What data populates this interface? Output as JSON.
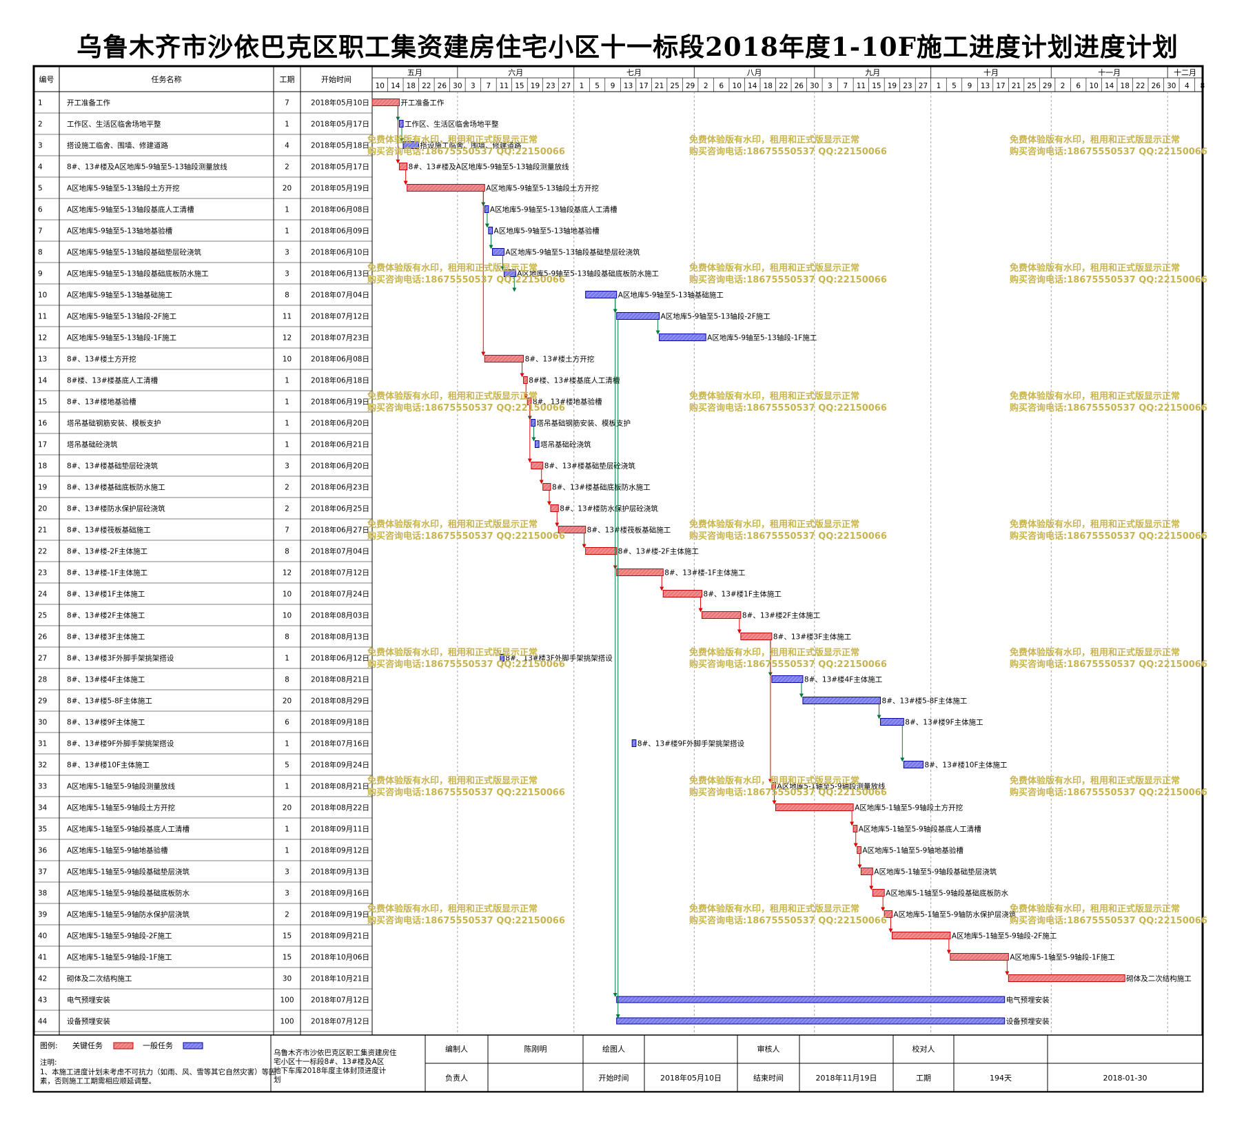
{
  "title": "乌鲁木齐市沙依巴克区职工集资建房住宅小区十一标段2018年度1-10F施工进度计划进度计划",
  "columns": {
    "id": "编号",
    "name": "任务名称",
    "duration": "工期",
    "start": "开始时间"
  },
  "watermark": {
    "line1": "免费体验版有水印，租用和正式版显示正常",
    "line2": "购买咨询电话:18675550537 QQ:22150066"
  },
  "colors": {
    "critical": "#e8787a",
    "critical_stroke": "#c00000",
    "normal": "#7878e8",
    "normal_stroke": "#0000a0",
    "link_critical": "#e00000",
    "link_normal": "#007a40",
    "watermark": "#c8b450",
    "month_line": "#8c8c8c"
  },
  "chart_data": {
    "type": "gantt",
    "timeline_start": "2018-05-10",
    "months": [
      {
        "label": "五月",
        "start": "2018-05-10"
      },
      {
        "label": "六月",
        "start": "2018-06-01"
      },
      {
        "label": "七月",
        "start": "2018-07-01"
      },
      {
        "label": "八月",
        "start": "2018-08-01"
      },
      {
        "label": "九月",
        "start": "2018-09-01"
      },
      {
        "label": "十月",
        "start": "2018-10-01"
      },
      {
        "label": "十一月",
        "start": "2018-11-01"
      },
      {
        "label": "十二月",
        "start": "2018-12-01"
      }
    ],
    "month_end": "2018-12-10",
    "ticks": [
      {
        "label": "10",
        "date": "2018-05-10"
      },
      {
        "label": "14",
        "date": "2018-05-14"
      },
      {
        "label": "18",
        "date": "2018-05-18"
      },
      {
        "label": "22",
        "date": "2018-05-22"
      },
      {
        "label": "26",
        "date": "2018-05-26"
      },
      {
        "label": "30",
        "date": "2018-05-30"
      },
      {
        "label": "3",
        "date": "2018-06-03"
      },
      {
        "label": "7",
        "date": "2018-06-07"
      },
      {
        "label": "11",
        "date": "2018-06-11"
      },
      {
        "label": "15",
        "date": "2018-06-15"
      },
      {
        "label": "19",
        "date": "2018-06-19"
      },
      {
        "label": "23",
        "date": "2018-06-23"
      },
      {
        "label": "27",
        "date": "2018-06-27"
      },
      {
        "label": "1",
        "date": "2018-07-01"
      },
      {
        "label": "5",
        "date": "2018-07-05"
      },
      {
        "label": "9",
        "date": "2018-07-09"
      },
      {
        "label": "13",
        "date": "2018-07-13"
      },
      {
        "label": "17",
        "date": "2018-07-17"
      },
      {
        "label": "21",
        "date": "2018-07-21"
      },
      {
        "label": "25",
        "date": "2018-07-25"
      },
      {
        "label": "29",
        "date": "2018-07-29"
      },
      {
        "label": "2",
        "date": "2018-08-02"
      },
      {
        "label": "6",
        "date": "2018-08-06"
      },
      {
        "label": "10",
        "date": "2018-08-10"
      },
      {
        "label": "14",
        "date": "2018-08-14"
      },
      {
        "label": "18",
        "date": "2018-08-18"
      },
      {
        "label": "22",
        "date": "2018-08-22"
      },
      {
        "label": "26",
        "date": "2018-08-26"
      },
      {
        "label": "30",
        "date": "2018-08-30"
      },
      {
        "label": "3",
        "date": "2018-09-03"
      },
      {
        "label": "7",
        "date": "2018-09-07"
      },
      {
        "label": "11",
        "date": "2018-09-11"
      },
      {
        "label": "15",
        "date": "2018-09-15"
      },
      {
        "label": "19",
        "date": "2018-09-19"
      },
      {
        "label": "23",
        "date": "2018-09-23"
      },
      {
        "label": "27",
        "date": "2018-09-27"
      },
      {
        "label": "1",
        "date": "2018-10-01"
      },
      {
        "label": "5",
        "date": "2018-10-05"
      },
      {
        "label": "9",
        "date": "2018-10-09"
      },
      {
        "label": "13",
        "date": "2018-10-13"
      },
      {
        "label": "17",
        "date": "2018-10-17"
      },
      {
        "label": "21",
        "date": "2018-10-21"
      },
      {
        "label": "25",
        "date": "2018-10-25"
      },
      {
        "label": "29",
        "date": "2018-10-29"
      },
      {
        "label": "2",
        "date": "2018-11-02"
      },
      {
        "label": "6",
        "date": "2018-11-06"
      },
      {
        "label": "10",
        "date": "2018-11-10"
      },
      {
        "label": "14",
        "date": "2018-11-14"
      },
      {
        "label": "18",
        "date": "2018-11-18"
      },
      {
        "label": "22",
        "date": "2018-11-22"
      },
      {
        "label": "26",
        "date": "2018-11-26"
      },
      {
        "label": "30",
        "date": "2018-11-30"
      },
      {
        "label": "4",
        "date": "2018-12-04"
      },
      {
        "label": "8",
        "date": "2018-12-08"
      }
    ],
    "tasks": [
      {
        "id": "1",
        "name": "开工准备工作",
        "duration": 7,
        "start": "2018年05月10日",
        "critical": true
      },
      {
        "id": "2",
        "name": "工作区、生活区临舍场地平整",
        "duration": 1,
        "start": "2018年05月17日",
        "critical": false
      },
      {
        "id": "3",
        "name": "搭设施工临舍、围墙、修建道路",
        "duration": 4,
        "start": "2018年05月18日",
        "critical": false
      },
      {
        "id": "4",
        "name": "8#、13#楼及A区地库5-9轴至5-13轴段测量放线",
        "duration": 2,
        "start": "2018年05月17日",
        "critical": true
      },
      {
        "id": "5",
        "name": "A区地库5-9轴至5-13轴段土方开挖",
        "duration": 20,
        "start": "2018年05月19日",
        "critical": true
      },
      {
        "id": "6",
        "name": "A区地库5-9轴至5-13轴段基底人工清槽",
        "duration": 1,
        "start": "2018年06月08日",
        "critical": false
      },
      {
        "id": "7",
        "name": "A区地库5-9轴至5-13轴地基验槽",
        "duration": 1,
        "start": "2018年06月09日",
        "critical": false
      },
      {
        "id": "8",
        "name": "A区地库5-9轴至5-13轴段基础垫层砼浇筑",
        "duration": 3,
        "start": "2018年06月10日",
        "critical": false
      },
      {
        "id": "9",
        "name": "A区地库5-9轴至5-13轴段基础底板防水施工",
        "duration": 3,
        "start": "2018年06月13日",
        "critical": false
      },
      {
        "id": "10",
        "name": "A区地库5-9轴至5-13轴基础施工",
        "duration": 8,
        "start": "2018年07月04日",
        "critical": false
      },
      {
        "id": "11",
        "name": "A区地库5-9轴至5-13轴段-2F施工",
        "duration": 11,
        "start": "2018年07月12日",
        "critical": false
      },
      {
        "id": "12",
        "name": "A区地库5-9轴至5-13轴段-1F施工",
        "duration": 12,
        "start": "2018年07月23日",
        "critical": false
      },
      {
        "id": "13",
        "name": "8#、13#楼土方开挖",
        "duration": 10,
        "start": "2018年06月08日",
        "critical": true
      },
      {
        "id": "14",
        "name": "8#楼、13#楼基底人工清槽",
        "duration": 1,
        "start": "2018年06月18日",
        "critical": true
      },
      {
        "id": "15",
        "name": "8#、13#楼地基验槽",
        "duration": 1,
        "start": "2018年06月19日",
        "critical": true
      },
      {
        "id": "16",
        "name": "塔吊基础钢筋安装、模板支护",
        "duration": 1,
        "start": "2018年06月20日",
        "critical": false
      },
      {
        "id": "17",
        "name": "塔吊基础砼浇筑",
        "duration": 1,
        "start": "2018年06月21日",
        "critical": false
      },
      {
        "id": "18",
        "name": "8#、13#楼基础垫层砼浇筑",
        "duration": 3,
        "start": "2018年06月20日",
        "critical": true
      },
      {
        "id": "19",
        "name": "8#、13#楼基础底板防水施工",
        "duration": 2,
        "start": "2018年06月23日",
        "critical": true
      },
      {
        "id": "20",
        "name": "8#、13#楼防水保护层砼浇筑",
        "duration": 2,
        "start": "2018年06月25日",
        "critical": true
      },
      {
        "id": "21",
        "name": "8#、13#楼筏板基础施工",
        "duration": 7,
        "start": "2018年06月27日",
        "critical": true
      },
      {
        "id": "22",
        "name": "8#、13#楼-2F主体施工",
        "duration": 8,
        "start": "2018年07月04日",
        "critical": true
      },
      {
        "id": "23",
        "name": "8#、13#楼-1F主体施工",
        "duration": 12,
        "start": "2018年07月12日",
        "critical": true
      },
      {
        "id": "24",
        "name": "8#、13#楼1F主体施工",
        "duration": 10,
        "start": "2018年07月24日",
        "critical": true
      },
      {
        "id": "25",
        "name": "8#、13#楼2F主体施工",
        "duration": 10,
        "start": "2018年08月03日",
        "critical": true
      },
      {
        "id": "26",
        "name": "8#、13#楼3F主体施工",
        "duration": 8,
        "start": "2018年08月13日",
        "critical": true
      },
      {
        "id": "27",
        "name": "8#、13#楼3F外脚手架挑架搭设",
        "duration": 1,
        "start": "2018年06月12日",
        "critical": false
      },
      {
        "id": "28",
        "name": "8#、13#楼4F主体施工",
        "duration": 8,
        "start": "2018年08月21日",
        "critical": false
      },
      {
        "id": "29",
        "name": "8#、13#楼5-8F主体施工",
        "duration": 20,
        "start": "2018年08月29日",
        "critical": false
      },
      {
        "id": "30",
        "name": "8#、13#楼9F主体施工",
        "duration": 6,
        "start": "2018年09月18日",
        "critical": false
      },
      {
        "id": "31",
        "name": "8#、13#楼9F外脚手架挑架搭设",
        "duration": 1,
        "start": "2018年07月16日",
        "critical": false
      },
      {
        "id": "32",
        "name": "8#、13#楼10F主体施工",
        "duration": 5,
        "start": "2018年09月24日",
        "critical": false
      },
      {
        "id": "33",
        "name": "A区地库5-1轴至5-9轴段测量放线",
        "duration": 1,
        "start": "2018年08月21日",
        "critical": true
      },
      {
        "id": "34",
        "name": "A区地库5-1轴至5-9轴段土方开挖",
        "duration": 20,
        "start": "2018年08月22日",
        "critical": true
      },
      {
        "id": "35",
        "name": "A区地库5-1轴至5-9轴段基底人工清槽",
        "duration": 1,
        "start": "2018年09月11日",
        "critical": true
      },
      {
        "id": "36",
        "name": "A区地库5-1轴至5-9轴地基验槽",
        "duration": 1,
        "start": "2018年09月12日",
        "critical": true
      },
      {
        "id": "37",
        "name": "A区地库5-1轴至5-9轴段基础垫层浇筑",
        "duration": 3,
        "start": "2018年09月13日",
        "critical": true
      },
      {
        "id": "38",
        "name": "A区地库5-1轴至5-9轴段基础底板防水",
        "duration": 3,
        "start": "2018年09月16日",
        "critical": true
      },
      {
        "id": "39",
        "name": "A区地库5-1轴至5-9轴防水保护层浇筑",
        "duration": 2,
        "start": "2018年09月19日",
        "critical": true
      },
      {
        "id": "40",
        "name": "A区地库5-1轴至5-9轴段-2F施工",
        "duration": 15,
        "start": "2018年09月21日",
        "critical": true
      },
      {
        "id": "41",
        "name": "A区地库5-1轴至5-9轴段-1F施工",
        "duration": 15,
        "start": "2018年10月06日",
        "critical": true
      },
      {
        "id": "42",
        "name": "砌体及二次结构施工",
        "duration": 30,
        "start": "2018年10月21日",
        "critical": true
      },
      {
        "id": "43",
        "name": "电气预埋安装",
        "duration": 100,
        "start": "2018年07月12日",
        "critical": false
      },
      {
        "id": "44",
        "name": "设备预埋安装",
        "duration": 100,
        "start": "2018年07月12日",
        "critical": false
      }
    ],
    "links": [
      {
        "from": "1",
        "to": "2",
        "type": "normal"
      },
      {
        "from": "2",
        "to": "3",
        "type": "normal"
      },
      {
        "from": "1",
        "to": "4",
        "type": "critical"
      },
      {
        "from": "4",
        "to": "5",
        "type": "critical"
      },
      {
        "from": "5",
        "to": "6",
        "type": "normal"
      },
      {
        "from": "6",
        "to": "7",
        "type": "normal"
      },
      {
        "from": "7",
        "to": "8",
        "type": "normal"
      },
      {
        "from": "8",
        "to": "9",
        "type": "normal"
      },
      {
        "from": "9",
        "to": "10",
        "type": "normal"
      },
      {
        "from": "10",
        "to": "11",
        "type": "normal"
      },
      {
        "from": "11",
        "to": "12",
        "type": "normal"
      },
      {
        "from": "5",
        "to": "13",
        "type": "critical"
      },
      {
        "from": "13",
        "to": "14",
        "type": "critical"
      },
      {
        "from": "14",
        "to": "15",
        "type": "critical"
      },
      {
        "from": "15",
        "to": "16",
        "type": "normal"
      },
      {
        "from": "16",
        "to": "17",
        "type": "normal"
      },
      {
        "from": "15",
        "to": "18",
        "type": "critical"
      },
      {
        "from": "18",
        "to": "19",
        "type": "critical"
      },
      {
        "from": "19",
        "to": "20",
        "type": "critical"
      },
      {
        "from": "20",
        "to": "21",
        "type": "critical"
      },
      {
        "from": "21",
        "to": "22",
        "type": "critical"
      },
      {
        "from": "22",
        "to": "23",
        "type": "critical"
      },
      {
        "from": "23",
        "to": "24",
        "type": "critical"
      },
      {
        "from": "24",
        "to": "25",
        "type": "critical"
      },
      {
        "from": "25",
        "to": "26",
        "type": "critical"
      },
      {
        "from": "26",
        "to": "28",
        "type": "normal"
      },
      {
        "from": "28",
        "to": "29",
        "type": "normal"
      },
      {
        "from": "29",
        "to": "30",
        "type": "normal"
      },
      {
        "from": "30",
        "to": "32",
        "type": "normal"
      },
      {
        "from": "26",
        "to": "33",
        "type": "critical"
      },
      {
        "from": "33",
        "to": "34",
        "type": "critical"
      },
      {
        "from": "34",
        "to": "35",
        "type": "critical"
      },
      {
        "from": "35",
        "to": "36",
        "type": "critical"
      },
      {
        "from": "36",
        "to": "37",
        "type": "critical"
      },
      {
        "from": "37",
        "to": "38",
        "type": "critical"
      },
      {
        "from": "38",
        "to": "39",
        "type": "critical"
      },
      {
        "from": "39",
        "to": "40",
        "type": "critical"
      },
      {
        "from": "40",
        "to": "41",
        "type": "critical"
      },
      {
        "from": "41",
        "to": "42",
        "type": "critical"
      },
      {
        "from": "10",
        "to": "43",
        "type": "normal"
      },
      {
        "from": "11",
        "to": "44",
        "type": "normal"
      }
    ]
  },
  "footer": {
    "legend_label": "图例:",
    "critical_label": "关键任务",
    "normal_label": "一般任务",
    "note_title": "注明:",
    "note_text": "1、本施工进度计划未考虑不可抗力（如雨、风、雪等其它自然灾害）等因素，否则施工工期需相应顺延调整。",
    "project": "乌鲁木齐市沙依巴克区职工集资建房住宅小区十一标段8#、13#楼及A区地下车库2018年度主体封顶进度计划",
    "compiled_label": "编制人",
    "compiled_value": "陈刚明",
    "drawn_label": "绘图人",
    "drawn_value": "",
    "reviewed_label": "审核人",
    "reviewed_value": "",
    "checked_label": "校对人",
    "checked_value": "",
    "responsible_label": "负责人",
    "responsible_value": "",
    "start_label": "开始时间",
    "start_value": "2018年05月10日",
    "end_label": "结束时间",
    "end_value": "2018年11月19日",
    "duration_label": "工期",
    "duration_value": "194天",
    "date_value": "2018-01-30"
  }
}
